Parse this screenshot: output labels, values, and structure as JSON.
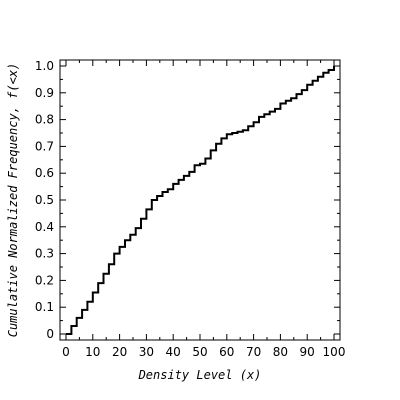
{
  "chart_data": {
    "type": "line",
    "title": "",
    "xlabel": "Density Level (x)",
    "ylabel": "Cumulative Normalized Frequency, f(<x)",
    "xlim": [
      0,
      100
    ],
    "ylim": [
      0,
      1.0
    ],
    "x_ticks": [
      0,
      10,
      20,
      30,
      40,
      50,
      60,
      70,
      80,
      90,
      100
    ],
    "x_tick_labels": [
      "0",
      "10",
      "20",
      "30",
      "40",
      "50",
      "60",
      "70",
      "80",
      "90",
      "100"
    ],
    "y_ticks": [
      0,
      0.1,
      0.2,
      0.3,
      0.4,
      0.5,
      0.6,
      0.7,
      0.8,
      0.9,
      1.0
    ],
    "y_tick_labels": [
      "0",
      "0.1",
      "0.2",
      "0.3",
      "0.4",
      "0.5",
      "0.6",
      "0.7",
      "0.8",
      "0.9",
      "1.0"
    ],
    "grid": false,
    "series": [
      {
        "color": "#000000",
        "x": [
          0,
          2,
          4,
          6,
          8,
          10,
          12,
          14,
          16,
          18,
          20,
          22,
          24,
          26,
          28,
          30,
          32,
          34,
          36,
          38,
          40,
          42,
          44,
          46,
          48,
          50,
          52,
          54,
          56,
          58,
          60,
          62,
          64,
          66,
          68,
          70,
          72,
          74,
          76,
          78,
          80,
          82,
          84,
          86,
          88,
          90,
          92,
          94,
          96,
          98,
          100
        ],
        "y": [
          0,
          0.03,
          0.06,
          0.09,
          0.12,
          0.155,
          0.19,
          0.225,
          0.26,
          0.3,
          0.325,
          0.35,
          0.37,
          0.395,
          0.43,
          0.465,
          0.5,
          0.515,
          0.53,
          0.54,
          0.56,
          0.575,
          0.59,
          0.605,
          0.63,
          0.635,
          0.655,
          0.685,
          0.71,
          0.73,
          0.745,
          0.75,
          0.755,
          0.76,
          0.775,
          0.79,
          0.81,
          0.82,
          0.83,
          0.84,
          0.86,
          0.87,
          0.88,
          0.895,
          0.91,
          0.93,
          0.945,
          0.96,
          0.975,
          0.985,
          1.0
        ]
      }
    ]
  }
}
